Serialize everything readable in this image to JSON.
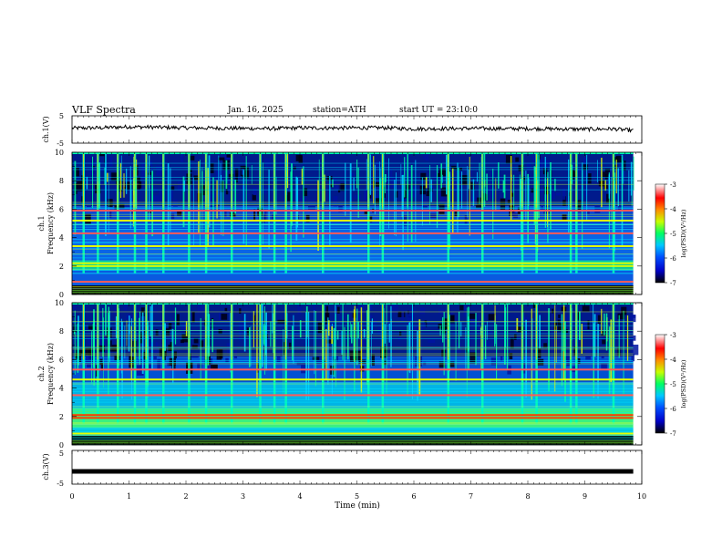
{
  "header": {
    "title": "VLF  Spectra",
    "date": "Jan. 16, 2025",
    "station": "station=ATH",
    "start": "start  UT  =   23:10:0"
  },
  "colorbar": {
    "label": "log(PSD)(V²/Hz)",
    "ticks": [
      -3,
      -4,
      -5,
      -6,
      -7
    ],
    "colormap": [
      "#000000",
      "#0000c8",
      "#0050ff",
      "#00c8ff",
      "#00ff64",
      "#c8ff00",
      "#ff8c00",
      "#ff0000",
      "#ffffff"
    ]
  },
  "chart_data": [
    {
      "type": "line",
      "name": "ch1-voltage",
      "ylabel": "ch.1(V)",
      "ylim": [
        -5,
        5
      ],
      "yticks": [
        5,
        -5
      ],
      "xlim": [
        0,
        10
      ],
      "x": [
        0,
        0.5,
        1,
        1.5,
        2,
        2.5,
        3,
        3.5,
        4,
        4.5,
        5,
        5.5,
        6,
        6.5,
        7,
        7.5,
        8,
        8.5,
        9,
        9.5,
        9.85
      ],
      "y": [
        0.5,
        0.6,
        1.0,
        0.8,
        0.6,
        0.5,
        0.4,
        0.3,
        0.6,
        0.5,
        0.6,
        0.6,
        0.2,
        0.3,
        0.4,
        0.3,
        0.3,
        0.2,
        0.1,
        0.2,
        -0.4
      ]
    },
    {
      "type": "heatmap",
      "name": "ch1-spectrogram",
      "ylabel": "ch.1 Frequency (kHz)",
      "ylim": [
        0,
        10
      ],
      "yticks": [
        0,
        2,
        4,
        6,
        8,
        10
      ],
      "xlim": [
        0,
        10
      ],
      "data_end_min": 9.85,
      "strong_bands_khz": [
        0.5,
        0.9,
        2.0,
        2.2,
        3.4,
        4.3,
        5.2,
        5.9
      ],
      "burst_times_min": [
        0.2,
        0.45,
        0.8,
        1.1,
        1.3,
        1.6,
        2.05,
        2.35,
        2.8,
        3.3,
        3.55,
        3.75,
        4.4,
        5.2,
        5.45,
        6.6,
        7.2,
        7.9,
        8.15,
        8.75,
        8.85,
        9.5
      ]
    },
    {
      "type": "heatmap",
      "name": "ch2-spectrogram",
      "ylabel": "ch.2 Frequency (kHz)",
      "ylim": [
        0,
        10
      ],
      "yticks": [
        0,
        2,
        4,
        6,
        8,
        10
      ],
      "xlim": [
        0,
        10
      ],
      "data_end_min": 9.85,
      "strong_bands_khz": [
        0.8,
        1.9,
        2.1,
        3.5,
        4.6,
        5.3
      ],
      "burst_times_min": [
        0.2,
        0.45,
        0.8,
        1.1,
        1.3,
        1.6,
        2.05,
        2.35,
        2.8,
        3.3,
        3.55,
        3.75,
        4.4,
        5.2,
        5.45,
        6.6,
        7.2,
        7.9,
        8.15,
        8.75,
        8.85,
        9.5
      ]
    },
    {
      "type": "line",
      "name": "ch3-voltage",
      "ylabel": "ch.3(V)",
      "ylim": [
        -5,
        5
      ],
      "yticks": [
        5,
        -5
      ],
      "xlim": [
        0,
        10
      ],
      "x": [
        0,
        9.85
      ],
      "y": [
        -1.2,
        -1.2
      ]
    }
  ],
  "xaxis": {
    "label": "Time  (min)",
    "ticks": [
      0,
      1,
      2,
      3,
      4,
      5,
      6,
      7,
      8,
      9,
      10
    ]
  }
}
